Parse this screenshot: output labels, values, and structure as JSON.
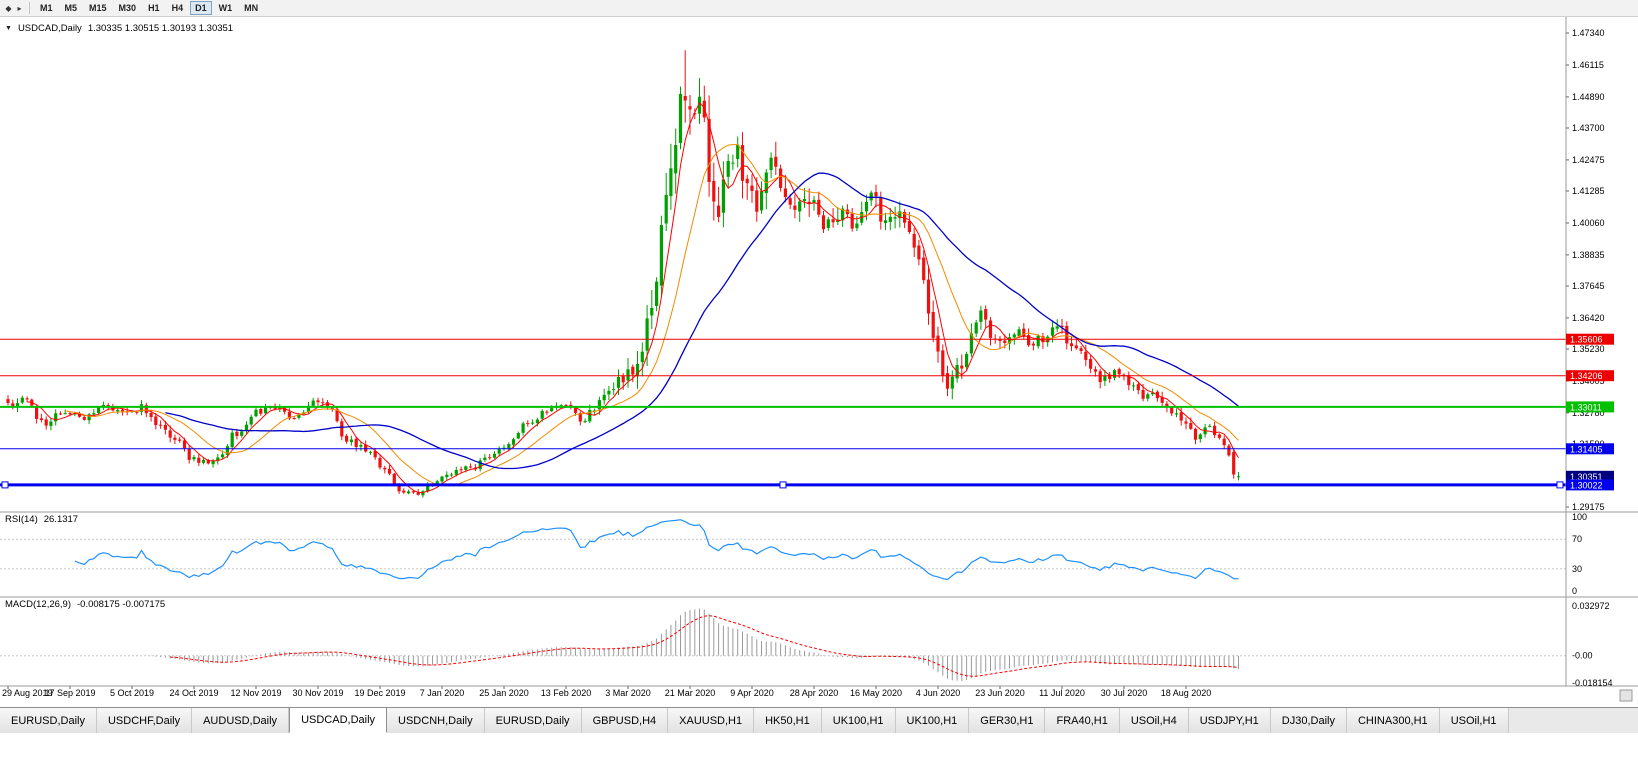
{
  "toolbar": {
    "grip_icon": "◆",
    "expand_icon": "▸",
    "timeframes": [
      "M1",
      "M5",
      "M15",
      "M30",
      "H1",
      "H4",
      "D1",
      "W1",
      "MN"
    ],
    "active_timeframe": "D1"
  },
  "chart": {
    "collapse_icon": "▼",
    "title": "USDCAD,Daily",
    "ohlc_text": "1.30335 1.30515 1.30193 1.30351"
  },
  "indicators": {
    "rsi_label": "RSI(14)",
    "rsi_value": "26.1317",
    "macd_label": "MACD(12,26,9)",
    "macd_values": "-0.008175 -0.007175"
  },
  "chart_data": {
    "type": "candlestick",
    "symbol": "USDCAD",
    "timeframe": "Daily",
    "current_price": 1.30351,
    "last_candle": {
      "open": 1.30335,
      "high": 1.30515,
      "low": 1.30193,
      "close": 1.30351
    },
    "high_of_period": 1.4668,
    "price_axis_labels": [
      "1.47340",
      "1.46115",
      "1.44890",
      "1.43700",
      "1.42475",
      "1.41285",
      "1.40060",
      "1.38835",
      "1.37645",
      "1.36420",
      "1.35230",
      "1.34005",
      "1.32780",
      "1.31590",
      "1.29175"
    ],
    "date_axis_labels": [
      "29 Aug 2019",
      "17 Sep 2019",
      "5 Oct 2019",
      "24 Oct 2019",
      "12 Nov 2019",
      "30 Nov 2019",
      "19 Dec 2019",
      "7 Jan 2020",
      "25 Jan 2020",
      "13 Feb 2020",
      "3 Mar 2020",
      "21 Mar 2020",
      "9 Apr 2020",
      "28 Apr 2020",
      "16 May 2020",
      "4 Jun 2020",
      "23 Jun 2020",
      "11 Jul 2020",
      "30 Jul 2020",
      "18 Aug 2020"
    ],
    "horizontal_lines": [
      {
        "value": 1.35606,
        "color": "#ee0000",
        "width": 1,
        "selected": false
      },
      {
        "value": 1.34206,
        "color": "#ee0000",
        "width": 1,
        "selected": false
      },
      {
        "value": 1.33011,
        "color": "#00c000",
        "width": 2,
        "selected": false
      },
      {
        "value": 1.31405,
        "color": "#0000ee",
        "width": 1,
        "selected": false
      },
      {
        "value": 1.30022,
        "color": "#0000ee",
        "width": 3,
        "selected": true
      }
    ],
    "colors": {
      "bull": "#00a000",
      "bear": "#ee1111",
      "ma_fast": "#ff0000",
      "ma_medium": "#f08c00",
      "ma_slow": "#0000c8",
      "rsi": "#1e90ff",
      "levels": "#c8c8c8",
      "macd_hist": "#9a9a9a",
      "macd_signal": "#ff0000",
      "current_tag_bg": "#000080"
    },
    "rsi": {
      "period": 14,
      "current": 26.1317,
      "axis_labels": [
        "100",
        "70",
        "30",
        "0"
      ],
      "levels": [
        70,
        30
      ]
    },
    "macd": {
      "fast": 12,
      "slow": 26,
      "signal": 9,
      "main": -0.008175,
      "signal_value": -0.007175,
      "axis_labels": [
        "0.032972",
        "-0.00",
        "-0.018154"
      ],
      "max": 0.032972,
      "min": -0.018154
    },
    "price_anchors": [
      [
        0,
        1.33,
        0.0032
      ],
      [
        4,
        1.3332,
        0.0032
      ],
      [
        7,
        1.3238,
        0.0032
      ],
      [
        12,
        1.329,
        0.0028
      ],
      [
        16,
        1.3256,
        0.0028
      ],
      [
        21,
        1.3306,
        0.0028
      ],
      [
        25,
        1.3272,
        0.0028
      ],
      [
        28,
        1.33,
        0.0028
      ],
      [
        31,
        1.3246,
        0.0032
      ],
      [
        35,
        1.3168,
        0.0032
      ],
      [
        39,
        1.3096,
        0.003
      ],
      [
        43,
        1.3082,
        0.0028
      ],
      [
        48,
        1.3202,
        0.0028
      ],
      [
        52,
        1.3286,
        0.0026
      ],
      [
        57,
        1.3302,
        0.0026
      ],
      [
        60,
        1.3256,
        0.0026
      ],
      [
        64,
        1.332,
        0.0026
      ],
      [
        67,
        1.3298,
        0.0026
      ],
      [
        71,
        1.318,
        0.0028
      ],
      [
        75,
        1.3142,
        0.0028
      ],
      [
        78,
        1.3078,
        0.0028
      ],
      [
        82,
        1.2986,
        0.0026
      ],
      [
        86,
        1.2976,
        0.0024
      ],
      [
        89,
        1.3012,
        0.0024
      ],
      [
        93,
        1.3052,
        0.0024
      ],
      [
        97,
        1.3066,
        0.0024
      ],
      [
        101,
        1.3106,
        0.0024
      ],
      [
        105,
        1.3162,
        0.0026
      ],
      [
        109,
        1.3242,
        0.0026
      ],
      [
        113,
        1.3288,
        0.0026
      ],
      [
        117,
        1.3302,
        0.0026
      ],
      [
        120,
        1.3252,
        0.0032
      ],
      [
        123,
        1.3292,
        0.004
      ],
      [
        126,
        1.3362,
        0.0055
      ],
      [
        129,
        1.3402,
        0.0065
      ],
      [
        132,
        1.3482,
        0.0085
      ],
      [
        135,
        1.3625,
        0.0115
      ],
      [
        137,
        1.395,
        0.015
      ],
      [
        139,
        1.4255,
        0.0185
      ],
      [
        141,
        1.4512,
        0.02
      ],
      [
        143,
        1.4368,
        0.0185
      ],
      [
        145,
        1.4452,
        0.0165
      ],
      [
        147,
        1.4238,
        0.015
      ],
      [
        149,
        1.4062,
        0.014
      ],
      [
        151,
        1.418,
        0.013
      ],
      [
        153,
        1.4282,
        0.012
      ],
      [
        155,
        1.4142,
        0.0115
      ],
      [
        157,
        1.41,
        0.0105
      ],
      [
        159,
        1.4162,
        0.0105
      ],
      [
        161,
        1.4262,
        0.01
      ],
      [
        163,
        1.4112,
        0.0095
      ],
      [
        166,
        1.4062,
        0.0088
      ],
      [
        169,
        1.4092,
        0.0085
      ],
      [
        172,
        1.3982,
        0.0085
      ],
      [
        175,
        1.4072,
        0.0078
      ],
      [
        178,
        1.4002,
        0.0075
      ],
      [
        181,
        1.4112,
        0.0072
      ],
      [
        184,
        1.3982,
        0.0072
      ],
      [
        187,
        1.4032,
        0.0068
      ],
      [
        190,
        1.3922,
        0.0068
      ],
      [
        192,
        1.3782,
        0.0075
      ],
      [
        194,
        1.3562,
        0.0085
      ],
      [
        196,
        1.3422,
        0.0085
      ],
      [
        198,
        1.3398,
        0.0075
      ],
      [
        200,
        1.3482,
        0.0072
      ],
      [
        202,
        1.3562,
        0.0072
      ],
      [
        204,
        1.3662,
        0.0072
      ],
      [
        206,
        1.3582,
        0.0068
      ],
      [
        208,
        1.3548,
        0.0062
      ],
      [
        211,
        1.3602,
        0.0055
      ],
      [
        214,
        1.3532,
        0.0052
      ],
      [
        217,
        1.3572,
        0.0048
      ],
      [
        220,
        1.3602,
        0.0046
      ],
      [
        223,
        1.3548,
        0.0046
      ],
      [
        226,
        1.3482,
        0.0046
      ],
      [
        229,
        1.3408,
        0.0044
      ],
      [
        232,
        1.3432,
        0.0042
      ],
      [
        235,
        1.3392,
        0.0042
      ],
      [
        238,
        1.3348,
        0.004
      ],
      [
        241,
        1.3332,
        0.0038
      ],
      [
        244,
        1.3272,
        0.0038
      ],
      [
        247,
        1.3218,
        0.0038
      ],
      [
        250,
        1.3182,
        0.0036
      ],
      [
        252,
        1.3232,
        0.0036
      ],
      [
        254,
        1.3186,
        0.0036
      ],
      [
        256,
        1.313,
        0.0034
      ],
      [
        258,
        1.30351,
        0.003
      ]
    ]
  },
  "tabs": {
    "items": [
      "EURUSD,Daily",
      "USDCHF,Daily",
      "AUDUSD,Daily",
      "USDCAD,Daily",
      "USDCNH,Daily",
      "EURUSD,Daily",
      "GBPUSD,H4",
      "XAUUSD,H1",
      "HK50,H1",
      "UK100,H1",
      "UK100,H1",
      "GER30,H1",
      "FRA40,H1",
      "USOil,H4",
      "USDJPY,H1",
      "DJ30,Daily",
      "CHINA300,H1",
      "USOil,H1"
    ],
    "active_index": 3
  }
}
